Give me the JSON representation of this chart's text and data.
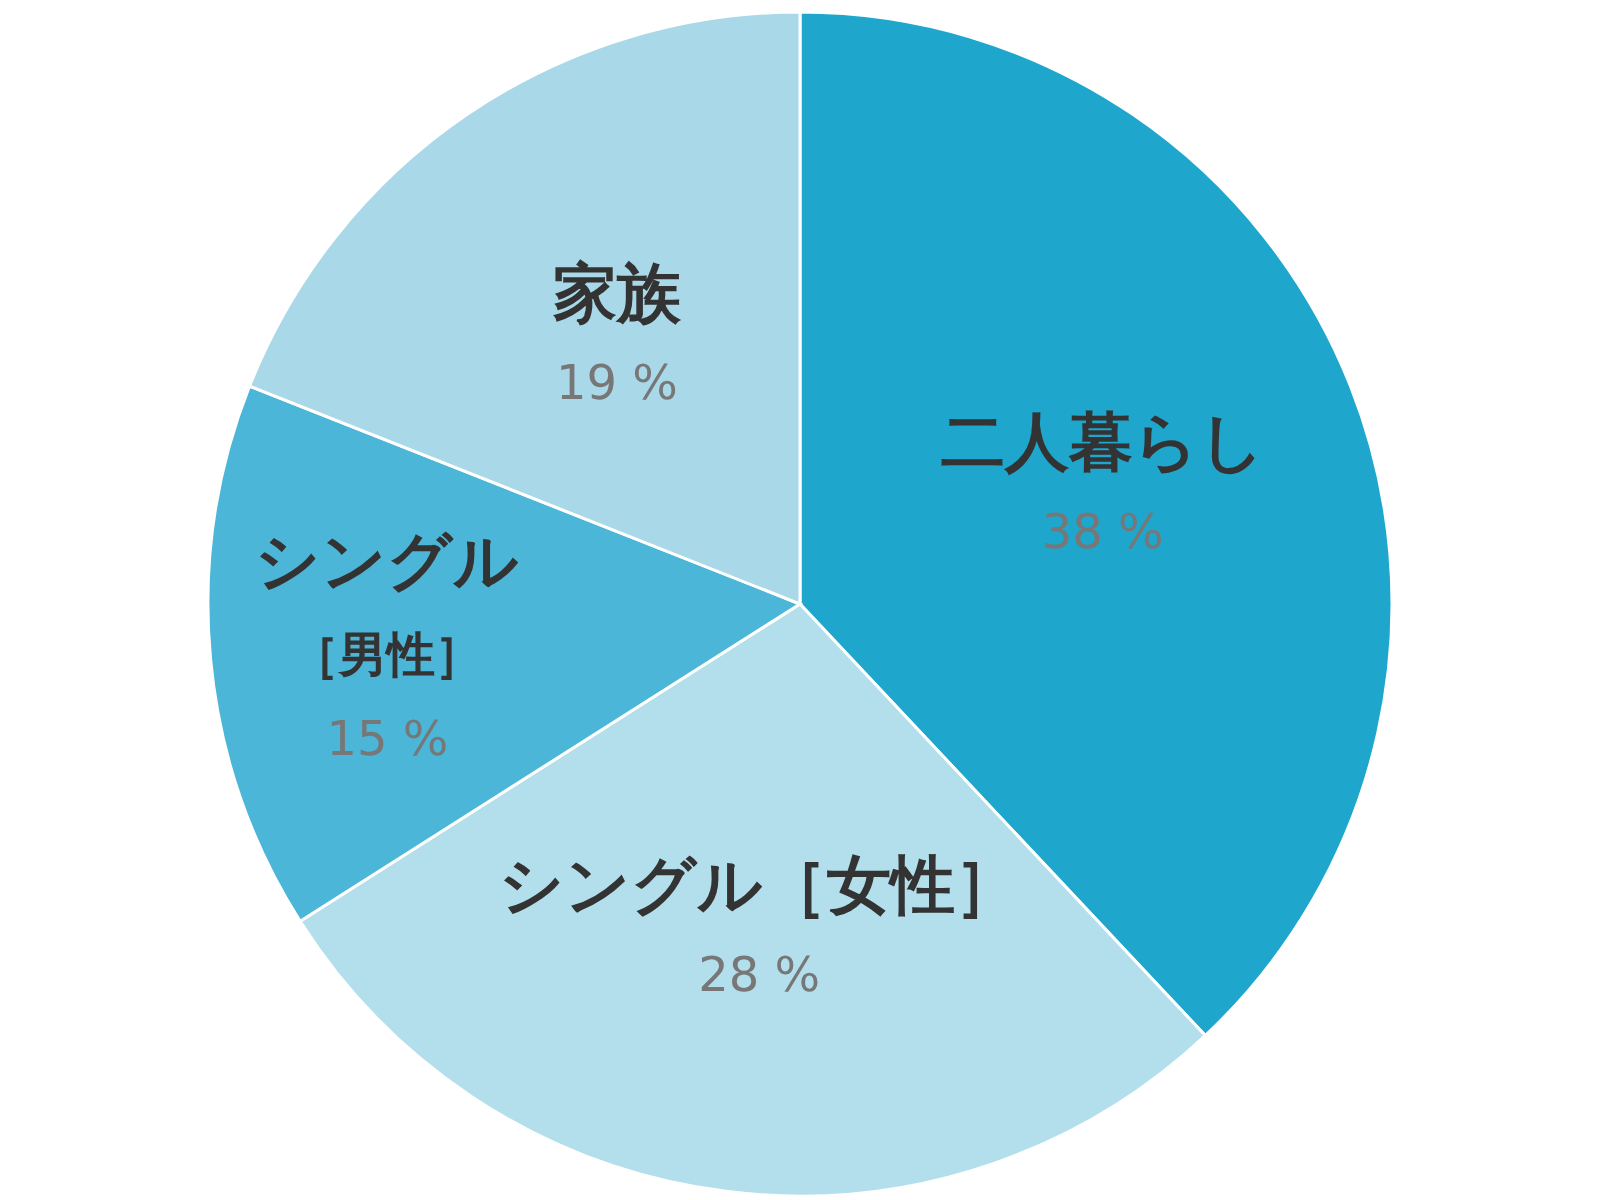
{
  "chart_data": {
    "type": "pie",
    "categories": [
      "二人暮らし",
      "シングル［女性］",
      "シングル［男性］",
      "家族"
    ],
    "values": [
      38,
      28,
      15,
      19
    ],
    "value_labels": [
      "38 %",
      "28 %",
      "15 %",
      "19 %"
    ],
    "colors": [
      "#1ea6cd",
      "#b2dfeb",
      "#4cb6d8",
      "#a9d8e8"
    ]
  }
}
